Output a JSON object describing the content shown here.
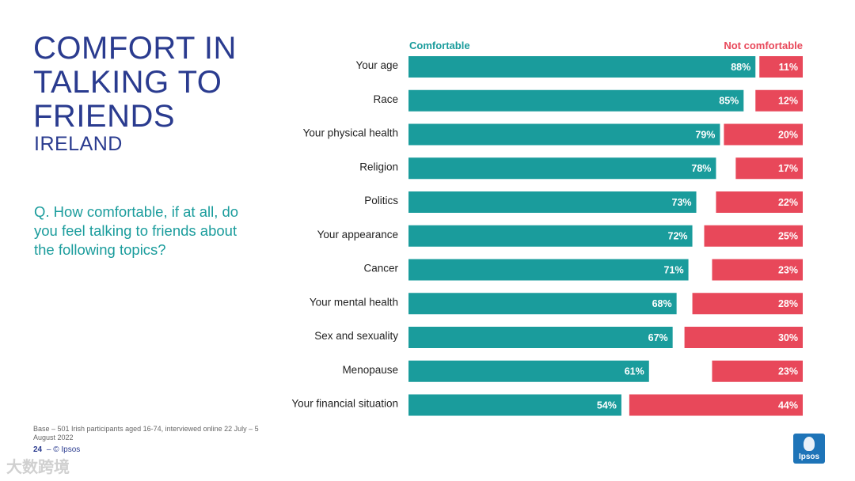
{
  "title_lines": [
    "COMFORT IN",
    "TALKING TO",
    "FRIENDS"
  ],
  "subtitle": "IRELAND",
  "question": "Q. How comfortable, if at all, do you feel talking to friends about the following topics?",
  "footnote": "Base – 501 Irish participants aged 16-74, interviewed online 22 July – 5 August 2022",
  "page_number": "24",
  "page_separator": "–",
  "copyright": "© Ipsos",
  "logo_text": "Ipsos",
  "watermark": "大数跨境",
  "colors": {
    "navy": "#2a3b8f",
    "teal": "#1a9c9c",
    "red": "#e8485a"
  },
  "chart_data": {
    "type": "bar",
    "orientation": "horizontal",
    "title": "",
    "xlim": [
      0,
      100
    ],
    "categories": [
      "Your age",
      "Race",
      "Your physical health",
      "Religion",
      "Politics",
      "Your appearance",
      "Cancer",
      "Your mental health",
      "Sex and sexuality",
      "Menopause",
      "Your financial situation"
    ],
    "series": [
      {
        "name": "Comfortable",
        "values": [
          88,
          85,
          79,
          78,
          73,
          72,
          71,
          68,
          67,
          61,
          54
        ],
        "color": "#1a9c9c",
        "anchor": "left"
      },
      {
        "name": "Not comfortable",
        "values": [
          11,
          12,
          20,
          17,
          22,
          25,
          23,
          28,
          30,
          23,
          44
        ],
        "color": "#e8485a",
        "anchor": "right"
      }
    ]
  }
}
